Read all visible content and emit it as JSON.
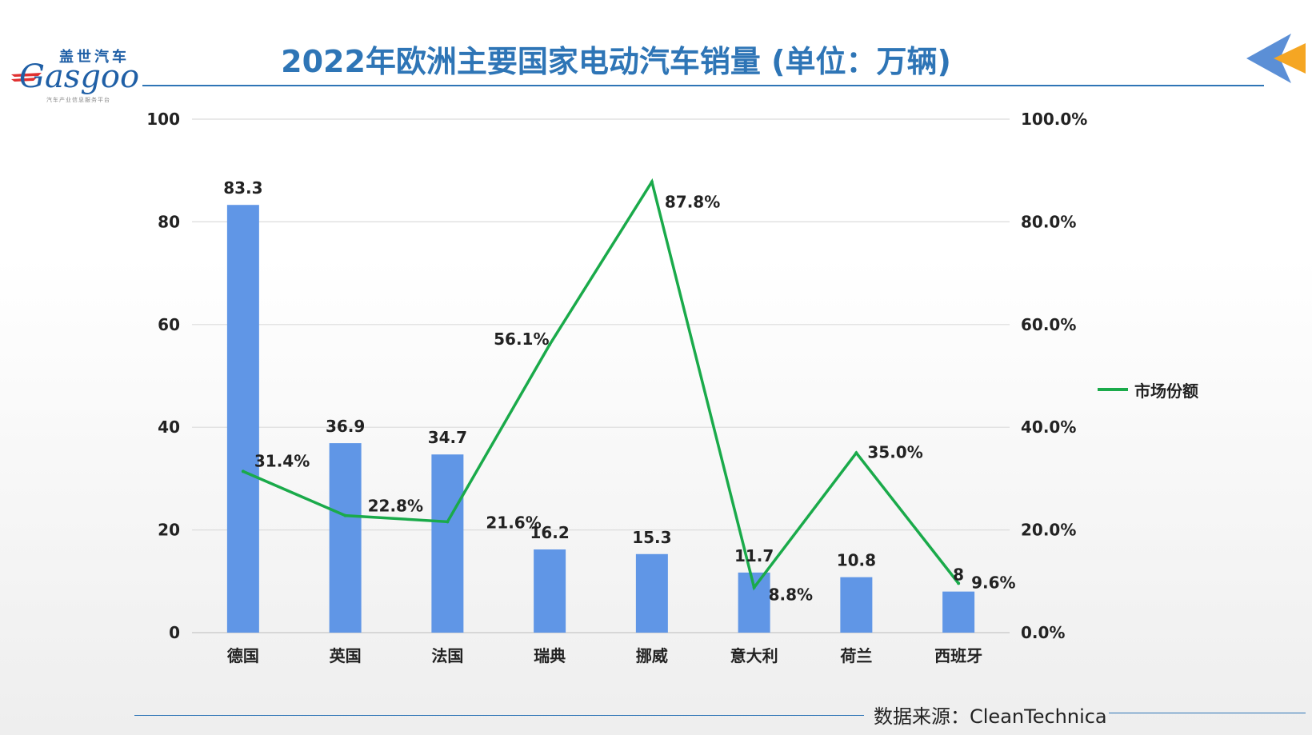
{
  "header": {
    "title": "2022年欧洲主要国家电动汽车销量 (单位：万辆)",
    "logo_cn": "盖世汽车",
    "logo_en": "Gasgoo",
    "logo_tag": "汽车产业信息服务平台"
  },
  "footer": {
    "source": "数据来源：CleanTechnica"
  },
  "colors": {
    "bar": "#6096e6",
    "line": "#1aaa4a",
    "title": "#2e75b6",
    "arrow_blue": "#5b8fd6",
    "arrow_orange": "#f5a623"
  },
  "chart_data": {
    "type": "bar",
    "categories": [
      "德国",
      "英国",
      "法国",
      "瑞典",
      "挪威",
      "意大利",
      "荷兰",
      "西班牙"
    ],
    "bar_labels": [
      "83.3",
      "36.9",
      "34.7",
      "16.2",
      "15.3",
      "11.7",
      "10.8",
      "8"
    ],
    "line_labels": [
      "31.4%",
      "22.8%",
      "21.6%",
      "56.1%",
      "87.8%",
      "8.8%",
      "35.0%",
      "9.6%"
    ],
    "series": [
      {
        "values": [
          83.3,
          36.9,
          34.7,
          16.2,
          15.3,
          11.7,
          10.8,
          8
        ],
        "axis": "left",
        "type": "bar"
      },
      {
        "name": "市场份额",
        "values": [
          31.4,
          22.8,
          21.6,
          56.1,
          87.8,
          8.8,
          35.0,
          9.6
        ],
        "axis": "right",
        "type": "line"
      }
    ],
    "ylim": [
      0,
      100
    ],
    "y_ticks": [
      "0",
      "20",
      "40",
      "60",
      "80",
      "100"
    ],
    "y2lim": [
      0,
      100
    ],
    "y2_ticks": [
      "0.0%",
      "20.0%",
      "40.0%",
      "60.0%",
      "80.0%",
      "100.0%"
    ],
    "grid": true,
    "legend_position": "right"
  }
}
